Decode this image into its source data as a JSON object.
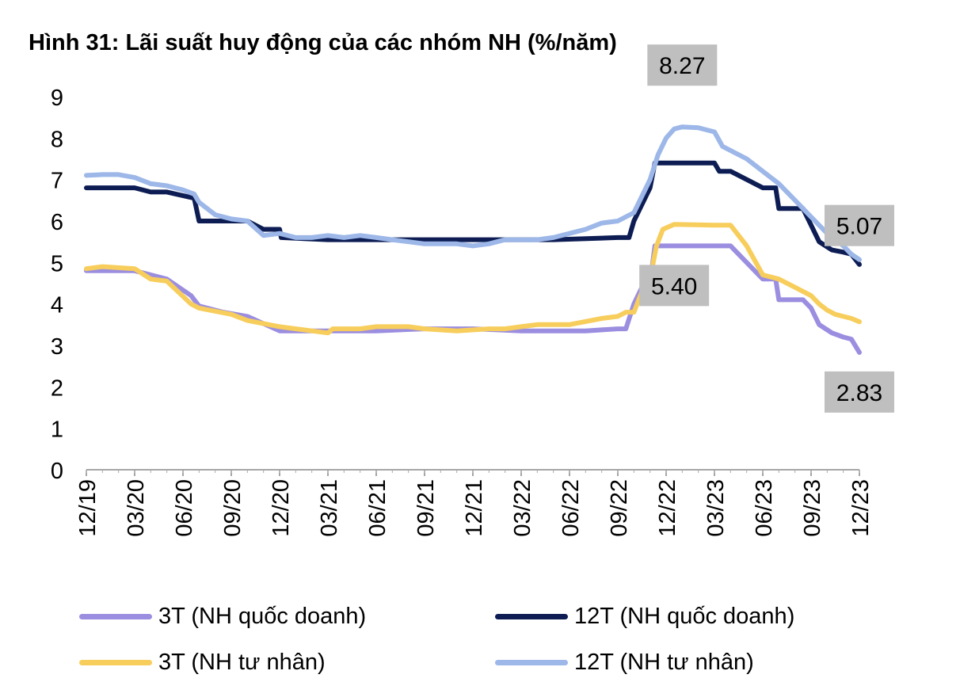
{
  "title": "Hình 31: Lãi suất huy động của các nhóm NH (%/năm)",
  "colors": {
    "purple": "#9b8ee0",
    "navy": "#0d1d54",
    "yellow": "#f7cd5c",
    "lightblue": "#9cb7e8",
    "label_bg": "#bfbfbf"
  },
  "legend": [
    {
      "label": "3T (NH quốc doanh)"
    },
    {
      "label": "12T (NH quốc doanh)"
    },
    {
      "label": "3T (NH tư nhân)"
    },
    {
      "label": "12T (NH tư nhân)"
    }
  ],
  "chart_data": {
    "type": "line",
    "title": "Hình 31: Lãi suất huy động của các nhóm NH (%/năm)",
    "xlabel": "",
    "ylabel": "",
    "ylim": [
      0,
      9
    ],
    "yticks": [
      0,
      1,
      2,
      3,
      4,
      5,
      6,
      7,
      8,
      9
    ],
    "x_tick_labels": [
      "12/19",
      "03/20",
      "06/20",
      "09/20",
      "12/20",
      "03/21",
      "06/21",
      "09/21",
      "12/21",
      "03/22",
      "06/22",
      "09/22",
      "12/22",
      "03/23",
      "06/23",
      "09/23",
      "12/23"
    ],
    "x_months_total": 48,
    "grid": false,
    "legend_position": "bottom",
    "series": [
      {
        "name": "3T (NH quốc doanh)",
        "color_key": "purple",
        "points": [
          [
            0,
            4.8
          ],
          [
            3,
            4.8
          ],
          [
            5,
            4.6
          ],
          [
            6.5,
            4.2
          ],
          [
            7,
            3.95
          ],
          [
            8.5,
            3.8
          ],
          [
            10,
            3.7
          ],
          [
            12,
            3.35
          ],
          [
            15,
            3.35
          ],
          [
            18,
            3.35
          ],
          [
            21,
            3.4
          ],
          [
            24,
            3.4
          ],
          [
            27,
            3.35
          ],
          [
            31,
            3.35
          ],
          [
            33,
            3.4
          ],
          [
            33.5,
            3.4
          ],
          [
            34,
            4.0
          ],
          [
            34.5,
            4.4
          ],
          [
            35,
            4.5
          ],
          [
            35.3,
            5.4
          ],
          [
            37,
            5.4
          ],
          [
            40,
            5.4
          ],
          [
            42,
            4.6
          ],
          [
            42.8,
            4.6
          ],
          [
            43,
            4.1
          ],
          [
            44.5,
            4.1
          ],
          [
            45,
            3.9
          ],
          [
            45.5,
            3.5
          ],
          [
            46.3,
            3.3
          ],
          [
            47,
            3.2
          ],
          [
            47.5,
            3.15
          ],
          [
            48,
            2.83
          ]
        ]
      },
      {
        "name": "12T (NH quốc doanh)",
        "color_key": "navy",
        "points": [
          [
            0,
            6.8
          ],
          [
            3,
            6.8
          ],
          [
            4,
            6.7
          ],
          [
            5,
            6.7
          ],
          [
            6.7,
            6.55
          ],
          [
            7,
            6.0
          ],
          [
            10,
            6.0
          ],
          [
            11,
            5.8
          ],
          [
            12,
            5.8
          ],
          [
            12.1,
            5.6
          ],
          [
            15,
            5.55
          ],
          [
            21,
            5.55
          ],
          [
            24,
            5.55
          ],
          [
            28,
            5.55
          ],
          [
            29,
            5.55
          ],
          [
            33,
            5.6
          ],
          [
            33.7,
            5.6
          ],
          [
            34,
            6.0
          ],
          [
            35,
            6.8
          ],
          [
            35.3,
            7.4
          ],
          [
            39,
            7.4
          ],
          [
            39.3,
            7.2
          ],
          [
            40,
            7.2
          ],
          [
            42,
            6.8
          ],
          [
            42.8,
            6.8
          ],
          [
            43,
            6.3
          ],
          [
            44.5,
            6.3
          ],
          [
            45,
            5.9
          ],
          [
            45.5,
            5.5
          ],
          [
            46.3,
            5.3
          ],
          [
            47,
            5.25
          ],
          [
            47.5,
            5.2
          ],
          [
            48,
            4.95
          ]
        ]
      },
      {
        "name": "3T (NH tư nhân)",
        "color_key": "yellow",
        "points": [
          [
            0,
            4.85
          ],
          [
            1,
            4.9
          ],
          [
            3,
            4.85
          ],
          [
            4,
            4.6
          ],
          [
            5,
            4.55
          ],
          [
            6.5,
            4.0
          ],
          [
            7,
            3.9
          ],
          [
            9,
            3.75
          ],
          [
            10,
            3.6
          ],
          [
            12,
            3.45
          ],
          [
            13,
            3.4
          ],
          [
            14,
            3.35
          ],
          [
            15,
            3.3
          ],
          [
            15.3,
            3.4
          ],
          [
            17,
            3.4
          ],
          [
            18,
            3.45
          ],
          [
            20,
            3.45
          ],
          [
            21,
            3.4
          ],
          [
            23,
            3.35
          ],
          [
            25,
            3.4
          ],
          [
            26,
            3.4
          ],
          [
            27,
            3.45
          ],
          [
            28,
            3.5
          ],
          [
            30,
            3.5
          ],
          [
            32,
            3.65
          ],
          [
            33,
            3.7
          ],
          [
            33.5,
            3.8
          ],
          [
            34,
            3.8
          ],
          [
            34.5,
            4.3
          ],
          [
            35,
            4.6
          ],
          [
            35.4,
            5.4
          ],
          [
            35.8,
            5.8
          ],
          [
            36.5,
            5.92
          ],
          [
            39,
            5.9
          ],
          [
            40,
            5.9
          ],
          [
            41,
            5.4
          ],
          [
            42,
            4.7
          ],
          [
            43,
            4.6
          ],
          [
            44,
            4.4
          ],
          [
            45,
            4.2
          ],
          [
            45.5,
            4.0
          ],
          [
            46,
            3.85
          ],
          [
            46.5,
            3.75
          ],
          [
            47,
            3.7
          ],
          [
            47.5,
            3.65
          ],
          [
            48,
            3.57
          ]
        ]
      },
      {
        "name": "12T (NH tư nhân)",
        "color_key": "lightblue",
        "points": [
          [
            0,
            7.1
          ],
          [
            1,
            7.12
          ],
          [
            2,
            7.12
          ],
          [
            3,
            7.05
          ],
          [
            4,
            6.9
          ],
          [
            5,
            6.85
          ],
          [
            6,
            6.75
          ],
          [
            6.7,
            6.65
          ],
          [
            7,
            6.45
          ],
          [
            8,
            6.15
          ],
          [
            9,
            6.05
          ],
          [
            10,
            6.0
          ],
          [
            11,
            5.65
          ],
          [
            12,
            5.7
          ],
          [
            13,
            5.6
          ],
          [
            14,
            5.6
          ],
          [
            15,
            5.65
          ],
          [
            16,
            5.6
          ],
          [
            17,
            5.65
          ],
          [
            18,
            5.6
          ],
          [
            19,
            5.55
          ],
          [
            20,
            5.5
          ],
          [
            21,
            5.45
          ],
          [
            23,
            5.45
          ],
          [
            24,
            5.4
          ],
          [
            25,
            5.45
          ],
          [
            26,
            5.55
          ],
          [
            27,
            5.55
          ],
          [
            28,
            5.55
          ],
          [
            29,
            5.6
          ],
          [
            30,
            5.7
          ],
          [
            31,
            5.8
          ],
          [
            32,
            5.95
          ],
          [
            33,
            6.0
          ],
          [
            34,
            6.2
          ],
          [
            34.5,
            6.6
          ],
          [
            35,
            7.0
          ],
          [
            35.5,
            7.6
          ],
          [
            36,
            8.0
          ],
          [
            36.5,
            8.22
          ],
          [
            37,
            8.27
          ],
          [
            38,
            8.25
          ],
          [
            39,
            8.15
          ],
          [
            39.5,
            7.8
          ],
          [
            41,
            7.5
          ],
          [
            42,
            7.2
          ],
          [
            43,
            6.9
          ],
          [
            44,
            6.5
          ],
          [
            45,
            6.1
          ],
          [
            46,
            5.7
          ],
          [
            47,
            5.4
          ],
          [
            47.5,
            5.2
          ],
          [
            48,
            5.07
          ]
        ]
      }
    ],
    "annotations": [
      {
        "text": "8.27",
        "x": 37,
        "y": 8.27
      },
      {
        "text": "5.07",
        "x": 48,
        "y": 5.07
      },
      {
        "text": "5.40",
        "x": 36.5,
        "y": 5.4
      },
      {
        "text": "2.83",
        "x": 48,
        "y": 2.83
      }
    ]
  }
}
